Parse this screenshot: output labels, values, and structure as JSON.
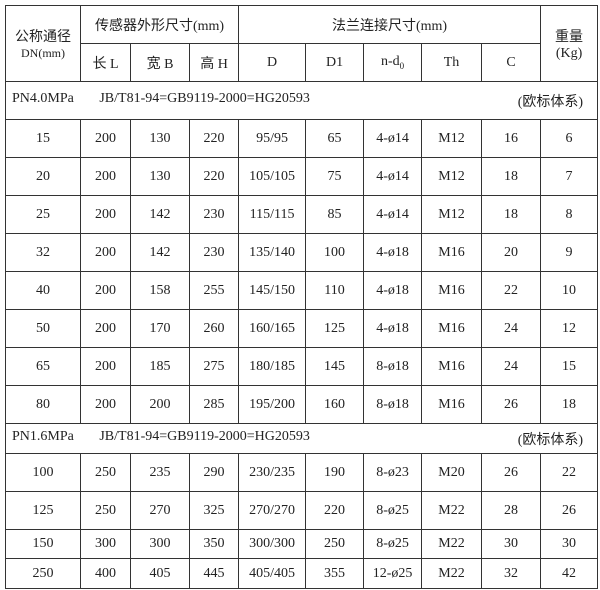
{
  "header": {
    "dn_label": "公称通径",
    "dn_unit": "DN(mm)",
    "sensor_group": "传感器外形尺寸(mm)",
    "flange_group": "法兰连接尺寸(mm)",
    "weight_label": "重量",
    "weight_unit": "(Kg)",
    "columns": [
      "长 L",
      "宽 B",
      "高 H",
      "D",
      "D1",
      "n-d",
      "Th",
      "C"
    ],
    "nd_subscript": "0"
  },
  "sections": [
    {
      "pressure": "PN4.0MPa",
      "standard": "JB/T81-94=GB9119-2000=HG20593",
      "system": "(欧标体系)",
      "rows": [
        [
          "15",
          "200",
          "130",
          "220",
          "95/95",
          "65",
          "4-ø14",
          "M12",
          "16",
          "6"
        ],
        [
          "20",
          "200",
          "130",
          "220",
          "105/105",
          "75",
          "4-ø14",
          "M12",
          "18",
          "7"
        ],
        [
          "25",
          "200",
          "142",
          "230",
          "115/115",
          "85",
          "4-ø14",
          "M12",
          "18",
          "8"
        ],
        [
          "32",
          "200",
          "142",
          "230",
          "135/140",
          "100",
          "4-ø18",
          "M16",
          "20",
          "9"
        ],
        [
          "40",
          "200",
          "158",
          "255",
          "145/150",
          "110",
          "4-ø18",
          "M16",
          "22",
          "10"
        ],
        [
          "50",
          "200",
          "170",
          "260",
          "160/165",
          "125",
          "4-ø18",
          "M16",
          "24",
          "12"
        ],
        [
          "65",
          "200",
          "185",
          "275",
          "180/185",
          "145",
          "8-ø18",
          "M16",
          "24",
          "15"
        ],
        [
          "80",
          "200",
          "200",
          "285",
          "195/200",
          "160",
          "8-ø18",
          "M16",
          "26",
          "18"
        ]
      ]
    },
    {
      "pressure": "PN1.6MPa",
      "standard": "JB/T81-94=GB9119-2000=HG20593",
      "system": "(欧标体系)",
      "rows": [
        [
          "100",
          "250",
          "235",
          "290",
          "230/235",
          "190",
          "8-ø23",
          "M20",
          "26",
          "22"
        ],
        [
          "125",
          "250",
          "270",
          "325",
          "270/270",
          "220",
          "8-ø25",
          "M22",
          "28",
          "26"
        ],
        [
          "150",
          "300",
          "300",
          "350",
          "300/300",
          "250",
          "8-ø25",
          "M22",
          "30",
          "30"
        ],
        [
          "250",
          "400",
          "405",
          "445",
          "405/405",
          "355",
          "12-ø25",
          "M22",
          "32",
          "42"
        ]
      ]
    }
  ]
}
